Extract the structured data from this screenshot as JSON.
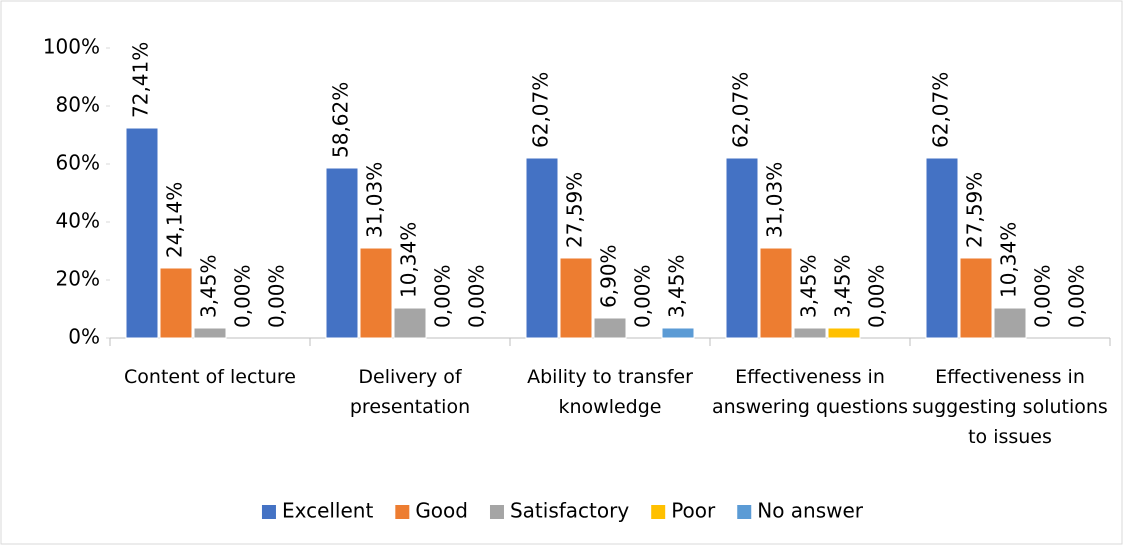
{
  "chart_data": {
    "type": "bar",
    "categories": [
      "Content of lecture",
      "Delivery of presentation",
      "Ability to transfer knowledge",
      "Effectiveness in answering questions",
      "Effectiveness in suggesting solutions to issues"
    ],
    "series": [
      {
        "name": "Excellent",
        "color": "#4472c4",
        "values": [
          72.41,
          58.62,
          62.07,
          62.07,
          62.07
        ],
        "value_labels": [
          "72,41%",
          "58,62%",
          "62,07%",
          "62,07%",
          "62,07%"
        ]
      },
      {
        "name": "Good",
        "color": "#ed7d31",
        "values": [
          24.14,
          31.03,
          27.59,
          31.03,
          27.59
        ],
        "value_labels": [
          "24,14%",
          "31,03%",
          "27,59%",
          "31,03%",
          "27,59%"
        ]
      },
      {
        "name": "Satisfactory",
        "color": "#a5a5a5",
        "values": [
          3.45,
          10.34,
          6.9,
          3.45,
          10.34
        ],
        "value_labels": [
          "3,45%",
          "10,34%",
          "6,90%",
          "3,45%",
          "10,34%"
        ]
      },
      {
        "name": "Poor",
        "color": "#ffc000",
        "values": [
          0,
          0,
          0,
          3.45,
          0
        ],
        "value_labels": [
          "0,00%",
          "0,00%",
          "0,00%",
          "3,45%",
          "0,00%"
        ]
      },
      {
        "name": "No answer",
        "color": "#5b9bd5",
        "values": [
          0,
          0,
          3.45,
          0,
          0
        ],
        "value_labels": [
          "0,00%",
          "0,00%",
          "3,45%",
          "0,00%",
          "0,00%"
        ]
      }
    ],
    "ylim": [
      0,
      100
    ],
    "yticks": [
      {
        "value": 0,
        "label": "0%"
      },
      {
        "value": 20,
        "label": "20%"
      },
      {
        "value": 40,
        "label": "40%"
      },
      {
        "value": 60,
        "label": "60%"
      },
      {
        "value": 80,
        "label": "80%"
      },
      {
        "value": 100,
        "label": "100%"
      }
    ],
    "legend": "bottom"
  }
}
